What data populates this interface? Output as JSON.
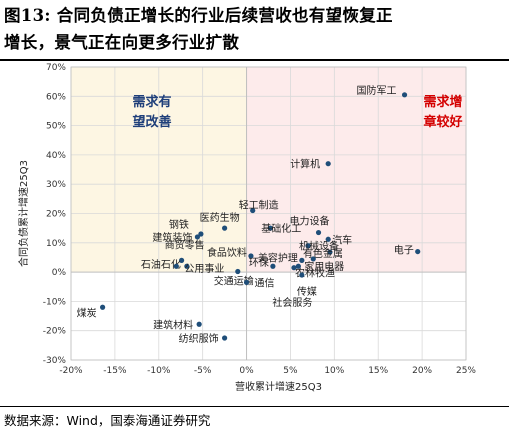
{
  "figure": {
    "title_line1": "图13:  合同负债正增长的行业后续营收也有望恢复正",
    "title_line2": "增长，景气正在向更多行业扩散",
    "source": "数据来源：Wind，国泰海通证券研究"
  },
  "colors": {
    "left_zone": "#fdf6e3",
    "right_zone": "#fdebeb",
    "left_zone_text": "#1f3f7a",
    "right_zone_text": "#d40000",
    "marker": "#1f4e79",
    "grid": "#d9d9d9",
    "axis": "#bfbfbf"
  },
  "chart_data": {
    "type": "scatter",
    "xlabel": "营收累计增速25Q3",
    "ylabel": "合同负债累计增速25Q3",
    "xlim": [
      -0.2,
      0.25
    ],
    "ylim": [
      -0.3,
      0.7
    ],
    "x_ticks": [
      "-20%",
      "-15%",
      "-10%",
      "-5%",
      "0%",
      "5%",
      "10%",
      "15%",
      "20%",
      "25%"
    ],
    "y_ticks": [
      "70%",
      "60%",
      "50%",
      "40%",
      "30%",
      "20%",
      "10%",
      "0%",
      "-10%",
      "-20%",
      "-30%"
    ],
    "zones": [
      {
        "name": "left",
        "label_line1": "需求有",
        "label_line2": "望改善"
      },
      {
        "name": "right",
        "label_line1": "需求增",
        "label_line2": "章较好"
      }
    ],
    "points": [
      {
        "label": "国防军工",
        "x": 0.18,
        "y": 0.605
      },
      {
        "label": "计算机",
        "x": 0.093,
        "y": 0.37
      },
      {
        "label": "轻工制造",
        "x": 0.007,
        "y": 0.21
      },
      {
        "label": "医药生物",
        "x": -0.025,
        "y": 0.15
      },
      {
        "label": "钢铁",
        "x": -0.052,
        "y": 0.13
      },
      {
        "label": "建筑装饰",
        "x": -0.056,
        "y": 0.12
      },
      {
        "label": "基础化工",
        "x": 0.027,
        "y": 0.15
      },
      {
        "label": "电力设备",
        "x": 0.082,
        "y": 0.135
      },
      {
        "label": "汽车",
        "x": 0.093,
        "y": 0.112
      },
      {
        "label": "机械设备",
        "x": 0.07,
        "y": 0.09
      },
      {
        "label": "电子",
        "x": 0.195,
        "y": 0.07
      },
      {
        "label": "有色金属",
        "x": 0.095,
        "y": 0.068
      },
      {
        "label": "家用电器",
        "x": 0.076,
        "y": 0.045
      },
      {
        "label": "食品饮料",
        "x": 0.005,
        "y": 0.055
      },
      {
        "label": "美容护理",
        "x": 0.063,
        "y": 0.04
      },
      {
        "label": "商贸零售",
        "x": -0.074,
        "y": 0.04
      },
      {
        "label": "石油石化",
        "x": -0.068,
        "y": 0.02
      },
      {
        "label": "公用事业",
        "x": -0.08,
        "y": 0.02
      },
      {
        "label": "环保",
        "x": 0.03,
        "y": 0.02
      },
      {
        "label": "农林牧渔",
        "x": 0.054,
        "y": 0.015
      },
      {
        "label": "交通运输",
        "x": -0.01,
        "y": 0.002
      },
      {
        "label": "通信",
        "x": 0.0,
        "y": -0.035
      },
      {
        "label": "传媒",
        "x": 0.063,
        "y": -0.01
      },
      {
        "label": "社会服务",
        "x": 0.059,
        "y": 0.02
      },
      {
        "label": "煤炭",
        "x": -0.164,
        "y": -0.12
      },
      {
        "label": "建筑材料",
        "x": -0.054,
        "y": -0.178
      },
      {
        "label": "纺织服饰",
        "x": -0.025,
        "y": -0.225
      }
    ]
  }
}
